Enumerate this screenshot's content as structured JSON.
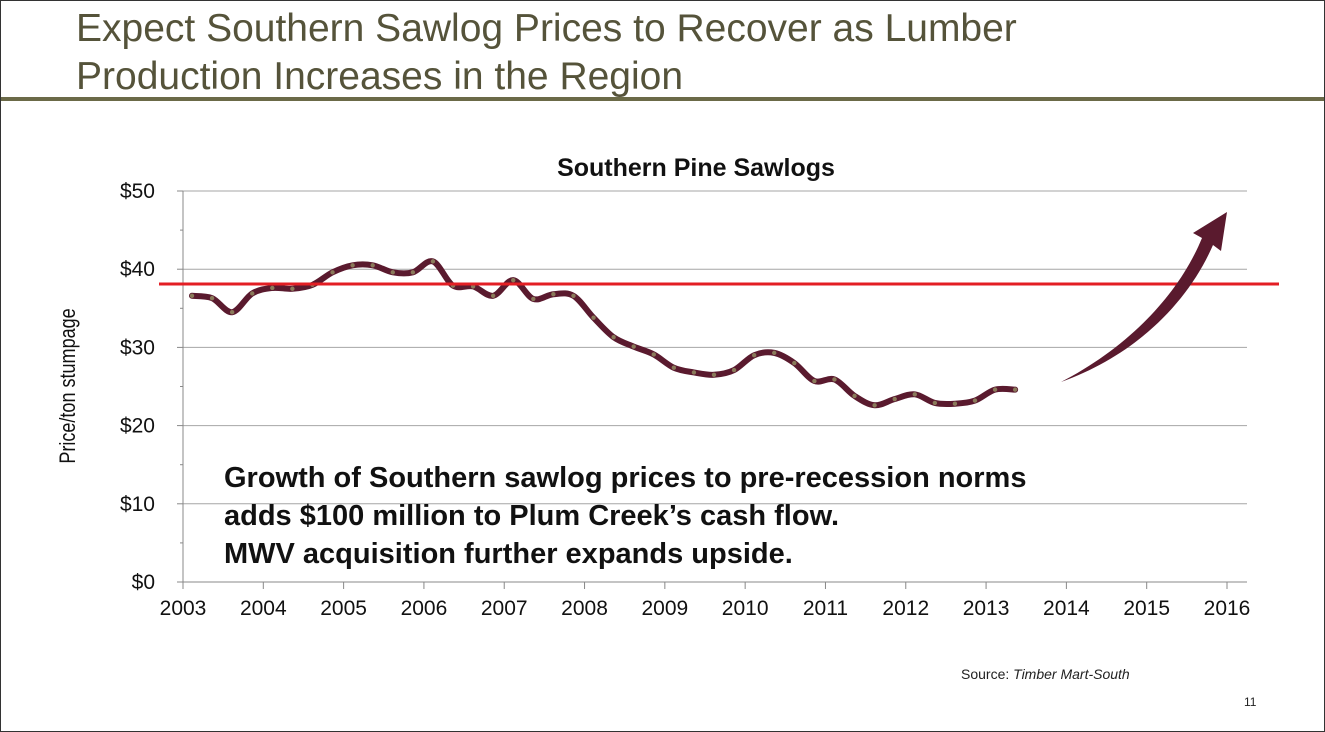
{
  "slide": {
    "title_line1": "Expect Southern Sawlog Prices to Recover as Lumber",
    "title_line2": "Production Increases in the Region",
    "callout_line1": "Growth of Southern sawlog prices to pre-recession norms",
    "callout_line2": "adds $100 million to Plum Creek’s cash flow.",
    "callout_line3": "MWV acquisition further expands upside.",
    "source_label": "Source: ",
    "source_name": "Timber Mart-South",
    "page_number": "11"
  },
  "colors": {
    "title_text": "#55533a",
    "title_rule": "#6b6a48",
    "series_line": "#5a1a2e",
    "series_dots": "#8a7a5a",
    "reference_line": "#e31e24",
    "arrow": "#5a1a2e",
    "grid": "#a6a6a6"
  },
  "chart_data": {
    "type": "line",
    "title": "Southern Pine Sawlogs",
    "ylabel": "Price/ton stumpage",
    "xlabel": "",
    "xlim": [
      2003,
      2016
    ],
    "ylim": [
      0,
      50
    ],
    "y_ticks": [
      "$0",
      "$10",
      "$20",
      "$30",
      "$40",
      "$50"
    ],
    "y_tick_values": [
      0,
      10,
      20,
      30,
      40,
      50
    ],
    "x_ticks": [
      "2003",
      "2004",
      "2005",
      "2006",
      "2007",
      "2008",
      "2009",
      "2010",
      "2011",
      "2012",
      "2013",
      "2014",
      "2015",
      "2016"
    ],
    "x_tick_values": [
      2003,
      2004,
      2005,
      2006,
      2007,
      2008,
      2009,
      2010,
      2011,
      2012,
      2013,
      2014,
      2015,
      2016
    ],
    "grid": true,
    "series": [
      {
        "x": [
          2003.0,
          2003.25,
          2003.5,
          2003.75,
          2004.0,
          2004.25,
          2004.5,
          2004.75,
          2005.0,
          2005.25,
          2005.5,
          2005.75,
          2006.0,
          2006.25,
          2006.5,
          2006.75,
          2007.0,
          2007.25,
          2007.5,
          2007.75,
          2008.0,
          2008.25,
          2008.5,
          2008.75,
          2009.0,
          2009.25,
          2009.5,
          2009.75,
          2010.0,
          2010.25,
          2010.5,
          2010.75,
          2011.0,
          2011.25,
          2011.5,
          2011.75,
          2012.0,
          2012.25,
          2012.5,
          2012.75,
          2013.0,
          2013.25
        ],
        "values": [
          36.6,
          36.3,
          34.5,
          36.9,
          37.6,
          37.5,
          38.0,
          39.6,
          40.5,
          40.5,
          39.6,
          39.6,
          41.0,
          37.9,
          37.8,
          36.6,
          38.6,
          36.2,
          36.8,
          36.6,
          33.8,
          31.3,
          30.1,
          29.1,
          27.4,
          26.8,
          26.5,
          27.1,
          29.0,
          29.3,
          28.0,
          25.7,
          25.9,
          23.8,
          22.6,
          23.4,
          24.0,
          22.9,
          22.8,
          23.2,
          24.6,
          24.6
        ]
      }
    ],
    "reference_line": {
      "value": 38.1
    },
    "annotation": "projected upward trend arrow"
  }
}
